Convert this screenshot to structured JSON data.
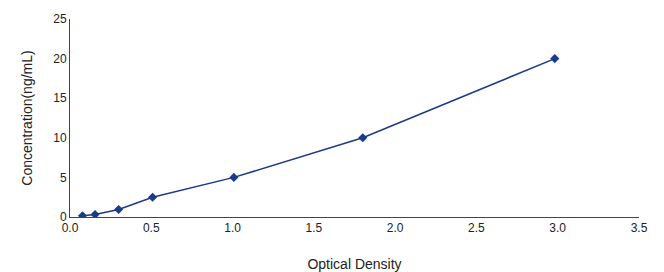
{
  "chart_data": {
    "type": "line",
    "x": [
      0.077,
      0.154,
      0.299,
      0.508,
      1.008,
      1.801,
      2.982
    ],
    "values": [
      0.156,
      0.312,
      0.938,
      2.5,
      5.0,
      10.0,
      20.0
    ],
    "color": "#1a3a8a",
    "marker": "diamond",
    "line_style": "solid",
    "xlabel": "Optical Density",
    "ylabel": "Concentration(ng/mL)",
    "xlim": [
      0,
      3.5
    ],
    "ylim": [
      0,
      25
    ],
    "xticks": [
      {
        "value": 0,
        "label": "0.0"
      },
      0.5,
      {
        "value": 1.0,
        "label": "1.0"
      },
      1.5,
      {
        "value": 2.0,
        "label": "2.0"
      },
      2.5,
      {
        "value": 3.0,
        "label": "3.0"
      },
      3.5
    ],
    "yticks": [
      0,
      5,
      10,
      15,
      20,
      25
    ],
    "grid": false
  }
}
